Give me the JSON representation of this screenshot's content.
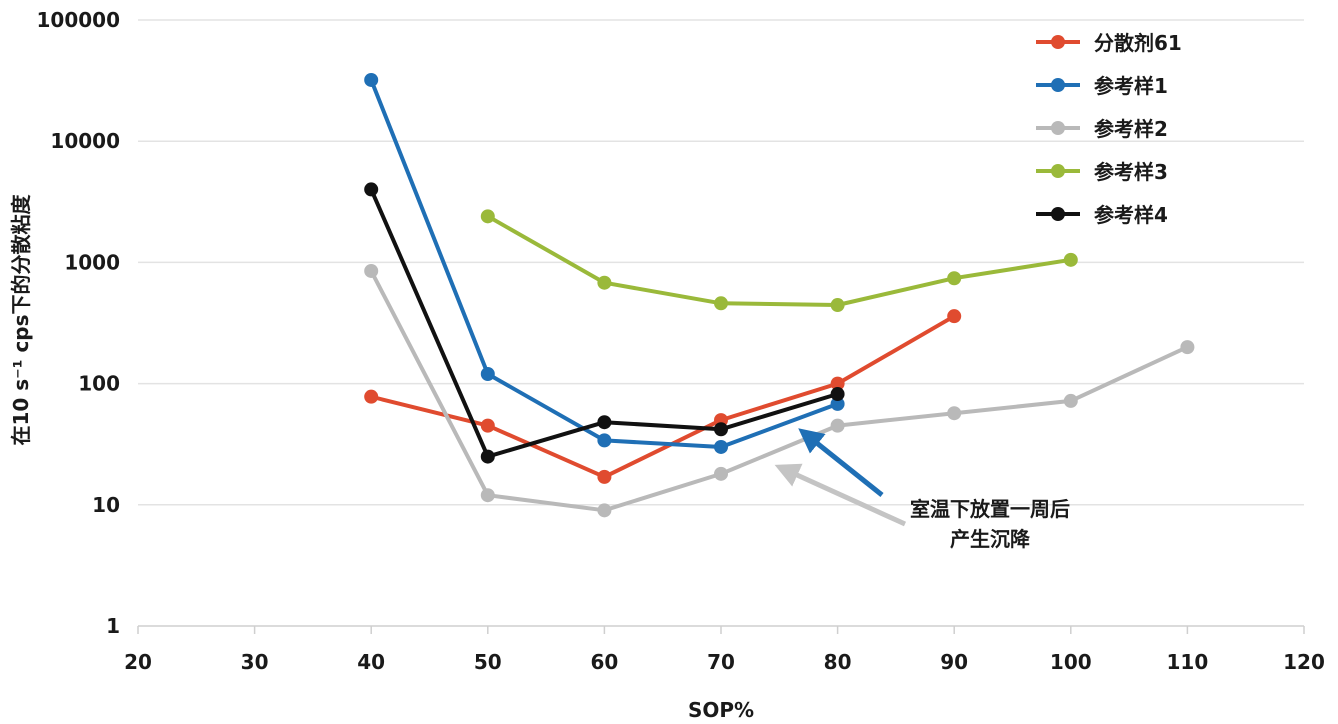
{
  "chart_data": {
    "type": "line",
    "title": "",
    "xlabel": "SOP%",
    "ylabel": "在10 s⁻¹ cps下的分散粘度",
    "xlim": [
      20,
      120
    ],
    "ylim": [
      1,
      100000
    ],
    "yscale": "log",
    "x_ticks": [
      "20",
      "30",
      "40",
      "50",
      "60",
      "70",
      "80",
      "90",
      "100",
      "110",
      "120"
    ],
    "y_ticks": [
      "1",
      "10",
      "100",
      "1000",
      "10000",
      "100000"
    ],
    "grid": "horizontal",
    "legend_position": "top-right",
    "series": [
      {
        "name": "分散剂61",
        "color": "#e04b2f",
        "points": [
          [
            40,
            78
          ],
          [
            50,
            45
          ],
          [
            60,
            17
          ],
          [
            70,
            50
          ],
          [
            80,
            100
          ],
          [
            90,
            360
          ]
        ]
      },
      {
        "name": "参考样1",
        "color": "#1f6fb5",
        "points": [
          [
            40,
            32000
          ],
          [
            50,
            120
          ],
          [
            60,
            34
          ],
          [
            70,
            30
          ],
          [
            80,
            68
          ]
        ]
      },
      {
        "name": "参考样2",
        "color": "#b9b9b9",
        "points": [
          [
            40,
            850
          ],
          [
            50,
            12
          ],
          [
            60,
            9
          ],
          [
            70,
            18
          ],
          [
            80,
            45
          ],
          [
            90,
            57
          ],
          [
            100,
            72
          ],
          [
            110,
            200
          ]
        ]
      },
      {
        "name": "参考样3",
        "color": "#9ab93a",
        "points": [
          [
            50,
            2400
          ],
          [
            60,
            680
          ],
          [
            70,
            460
          ],
          [
            80,
            445
          ],
          [
            90,
            740
          ],
          [
            100,
            1050
          ]
        ]
      },
      {
        "name": "参考样4",
        "color": "#111111",
        "points": [
          [
            40,
            4000
          ],
          [
            50,
            25
          ],
          [
            60,
            48
          ],
          [
            70,
            42
          ],
          [
            80,
            82
          ]
        ]
      }
    ],
    "annotation": {
      "lines": [
        "室温下放置一周后",
        "产生沉降"
      ],
      "arrow_colors": [
        "#1f6fb5",
        "#b9b9b9"
      ]
    }
  }
}
